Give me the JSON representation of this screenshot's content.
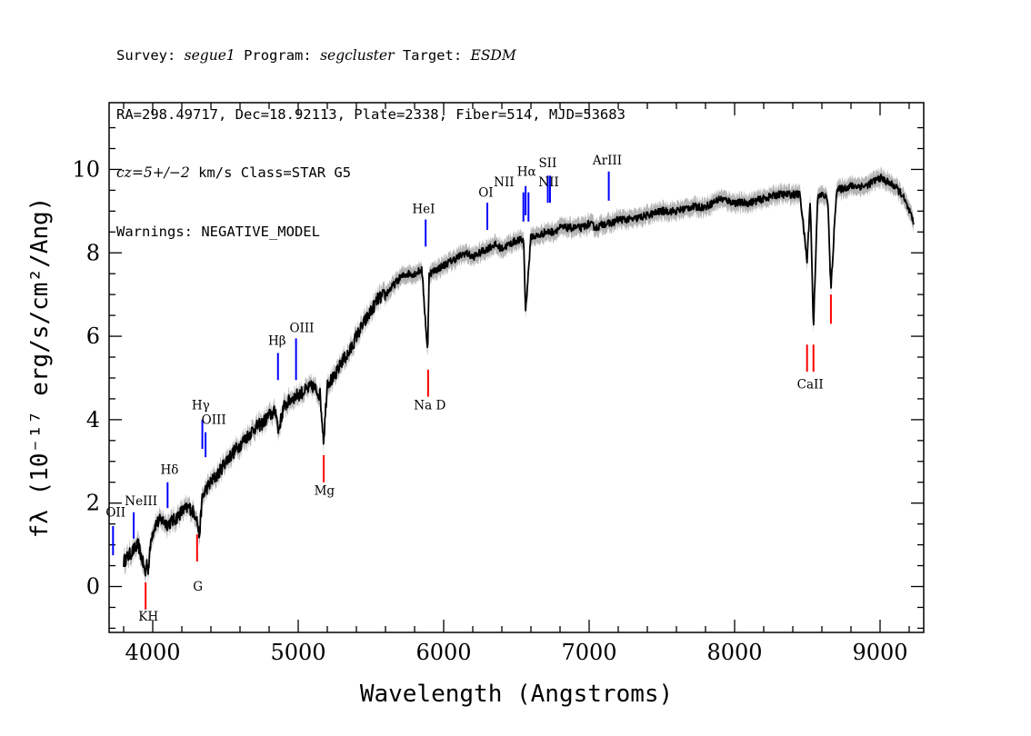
{
  "header": {
    "line1": {
      "survey_label": "Survey: ",
      "survey": "segue1",
      "program_label": " Program: ",
      "program": "segcluster",
      "target_label": " Target: ",
      "target": "ESDM"
    },
    "line2": "RA=298.49717, Dec=18.92113, Plate=2338, Fiber=514, MJD=53683",
    "line3": {
      "cz": "cz=5+/−2",
      "rest": " km/s Class=STAR G5"
    },
    "line4": "Warnings: NEGATIVE_MODEL"
  },
  "chart_data": {
    "type": "line",
    "xlabel": "Wavelength (Angstroms)",
    "ylabel": "fλ (10⁻¹⁷ erg/s/cm²/Ang)",
    "xlim": [
      3700,
      9300
    ],
    "ylim": [
      -1.1,
      11.6
    ],
    "x_ticks": [
      4000,
      5000,
      6000,
      7000,
      8000,
      9000
    ],
    "y_ticks": [
      0,
      2,
      4,
      6,
      8,
      10
    ],
    "x_tick_labels": [
      "4000",
      "5000",
      "6000",
      "7000",
      "8000",
      "9000"
    ],
    "y_tick_labels": [
      "0",
      "2",
      "4",
      "6",
      "8",
      "10"
    ],
    "spectrum_color": "#000000",
    "error_color": "#b4b4b4",
    "emission_color": "#0000ff",
    "absorption_color": "#ff0000",
    "spectrum": {
      "x": [
        3800,
        3850,
        3900,
        3930,
        3950,
        3960,
        3970,
        3990,
        4020,
        4060,
        4100,
        4150,
        4200,
        4250,
        4300,
        4320,
        4340,
        4360,
        4400,
        4450,
        4500,
        4550,
        4600,
        4650,
        4700,
        4750,
        4800,
        4850,
        4861,
        4900,
        4950,
        5000,
        5050,
        5100,
        5150,
        5175,
        5200,
        5250,
        5300,
        5350,
        5400,
        5450,
        5500,
        5550,
        5600,
        5650,
        5700,
        5750,
        5800,
        5850,
        5890,
        5900,
        5950,
        6000,
        6050,
        6100,
        6150,
        6200,
        6250,
        6300,
        6350,
        6400,
        6450,
        6500,
        6550,
        6563,
        6600,
        6650,
        6700,
        6750,
        6800,
        6850,
        6900,
        6950,
        7000,
        7050,
        7100,
        7150,
        7200,
        7300,
        7400,
        7500,
        7600,
        7700,
        7800,
        7900,
        8000,
        8100,
        8200,
        8300,
        8400,
        8450,
        8498,
        8520,
        8542,
        8570,
        8600,
        8640,
        8662,
        8700,
        8800,
        8900,
        9000,
        9050,
        9100,
        9150,
        9200,
        9230
      ],
      "y": [
        0.6,
        0.8,
        1.0,
        0.6,
        0.3,
        0.6,
        0.4,
        1.2,
        1.5,
        1.6,
        1.5,
        1.6,
        1.8,
        1.9,
        1.7,
        1.2,
        2.1,
        2.3,
        2.5,
        2.7,
        3.0,
        3.2,
        3.4,
        3.6,
        3.8,
        3.9,
        4.1,
        4.2,
        3.7,
        4.3,
        4.5,
        4.6,
        4.7,
        4.8,
        4.6,
        3.5,
        4.9,
        5.0,
        5.4,
        5.6,
        6.0,
        6.3,
        6.6,
        6.9,
        7.0,
        7.2,
        7.4,
        7.5,
        7.5,
        7.6,
        5.6,
        7.5,
        7.6,
        7.7,
        7.8,
        7.9,
        8.0,
        7.9,
        8.0,
        8.1,
        8.2,
        8.1,
        8.2,
        8.3,
        8.3,
        6.6,
        8.4,
        8.4,
        8.5,
        8.5,
        8.6,
        8.6,
        8.6,
        8.6,
        8.7,
        8.6,
        8.7,
        8.7,
        8.8,
        8.8,
        8.9,
        9.0,
        9.0,
        9.1,
        9.1,
        9.3,
        9.2,
        9.2,
        9.3,
        9.4,
        9.4,
        9.4,
        7.8,
        9.3,
        6.2,
        9.3,
        9.4,
        9.3,
        7.1,
        9.5,
        9.6,
        9.6,
        9.8,
        9.7,
        9.6,
        9.4,
        9.0,
        8.7
      ]
    },
    "line_marks": [
      {
        "label": "OII",
        "wavelength": 3727,
        "color": "blue",
        "y_bottom": 0.75,
        "y_top": 1.45,
        "label_y": 1.68
      },
      {
        "label": "NeIII",
        "wavelength": 3869,
        "color": "blue",
        "y_bottom": 1.15,
        "y_top": 1.78,
        "label_y": 1.95
      },
      {
        "label": "KH",
        "wavelength": 3951,
        "color": "red",
        "y_bottom": -0.55,
        "y_top": 0.1,
        "label_y": -0.82
      },
      {
        "label": "Hδ",
        "wavelength": 4102,
        "color": "blue",
        "y_bottom": 1.88,
        "y_top": 2.5,
        "label_y": 2.7
      },
      {
        "label": "G",
        "wavelength": 4305,
        "color": "red",
        "y_bottom": 0.6,
        "y_top": 1.25,
        "label_y": -0.1
      },
      {
        "label": "Hγ",
        "wavelength": 4341,
        "color": "blue",
        "y_bottom": 3.3,
        "y_top": 4.0,
        "label_y": 4.25
      },
      {
        "label": "OIII",
        "wavelength": 4363,
        "color": "blue",
        "y_bottom": 3.1,
        "y_top": 3.7,
        "label_y": 3.9
      },
      {
        "label": "Hβ",
        "wavelength": 4861,
        "color": "blue",
        "y_bottom": 4.95,
        "y_top": 5.6,
        "label_y": 5.8
      },
      {
        "label": "OIII",
        "wavelength": 4985,
        "color": "blue",
        "y_bottom": 4.95,
        "y_top": 5.95,
        "label_y": 6.1
      },
      {
        "label": "Mg",
        "wavelength": 5175,
        "color": "red",
        "y_bottom": 2.5,
        "y_top": 3.15,
        "label_y": 2.2
      },
      {
        "label": "HeI",
        "wavelength": 5876,
        "color": "blue",
        "y_bottom": 8.15,
        "y_top": 8.8,
        "label_y": 8.95
      },
      {
        "label": "Na D",
        "wavelength": 5893,
        "color": "red",
        "y_bottom": 4.55,
        "y_top": 5.2,
        "label_y": 4.25
      },
      {
        "label": "OI",
        "wavelength": 6300,
        "color": "blue",
        "y_bottom": 8.55,
        "y_top": 9.2,
        "label_y": 9.35
      },
      {
        "label": "NII",
        "wavelength": 6548,
        "color": "blue",
        "y_bottom": 8.75,
        "y_top": 9.45,
        "label_y": 9.6
      },
      {
        "label": "Hα",
        "wavelength": 6563,
        "color": "blue",
        "y_bottom": 8.9,
        "y_top": 9.6,
        "label_y": 9.85
      },
      {
        "label": "NII",
        "wavelength": 6583,
        "color": "blue",
        "y_bottom": 8.75,
        "y_top": 9.45,
        "label_y": 9.6
      },
      {
        "label": "SII",
        "wavelength": 6716,
        "color": "blue",
        "y_bottom": 9.2,
        "y_top": 9.85,
        "label_y": 10.05
      },
      {
        "label": "SII",
        "wavelength": 6731,
        "color": "blue",
        "y_bottom": 9.2,
        "y_top": 9.85,
        "label_y": 10.05
      },
      {
        "label": "ArIII",
        "wavelength": 7135,
        "color": "blue",
        "y_bottom": 9.25,
        "y_top": 9.95,
        "label_y": 10.12
      },
      {
        "label": "CaII",
        "wavelength": 8498,
        "color": "red",
        "y_bottom": 5.15,
        "y_top": 5.8,
        "label_y": 4.75
      },
      {
        "label": "CaII",
        "wavelength": 8542,
        "color": "red",
        "y_bottom": 5.15,
        "y_top": 5.8,
        "label_y": 4.75
      },
      {
        "label": "CaII",
        "wavelength": 8662,
        "color": "red",
        "y_bottom": 6.3,
        "y_top": 7.0,
        "label_y": 4.75
      }
    ],
    "visible_labels": [
      {
        "text": "OII",
        "wavelength": 3745,
        "y": 1.68
      },
      {
        "text": "NeIII",
        "wavelength": 3920,
        "y": 1.95
      },
      {
        "text": "KH",
        "wavelength": 3970,
        "y": -0.82
      },
      {
        "text": "Hδ",
        "wavelength": 4115,
        "y": 2.7
      },
      {
        "text": "G",
        "wavelength": 4310,
        "y": -0.1
      },
      {
        "text": "Hγ",
        "wavelength": 4330,
        "y": 4.25
      },
      {
        "text": "OIII",
        "wavelength": 4420,
        "y": 3.9
      },
      {
        "text": "Hβ",
        "wavelength": 4855,
        "y": 5.8
      },
      {
        "text": "OIII",
        "wavelength": 5025,
        "y": 6.1
      },
      {
        "text": "Mg",
        "wavelength": 5180,
        "y": 2.2
      },
      {
        "text": "HeI",
        "wavelength": 5862,
        "y": 8.95
      },
      {
        "text": "Na D",
        "wavelength": 5905,
        "y": 4.25
      },
      {
        "text": "OI",
        "wavelength": 6290,
        "y": 9.35
      },
      {
        "text": "NII",
        "wavelength": 6415,
        "y": 9.6
      },
      {
        "text": "Hα",
        "wavelength": 6570,
        "y": 9.85
      },
      {
        "text": "SII",
        "wavelength": 6715,
        "y": 10.05
      },
      {
        "text": "NII",
        "wavelength": 6722,
        "y": 9.6
      },
      {
        "text": "ArIII",
        "wavelength": 7125,
        "y": 10.12
      },
      {
        "text": "CaII",
        "wavelength": 8520,
        "y": 4.75
      }
    ]
  }
}
